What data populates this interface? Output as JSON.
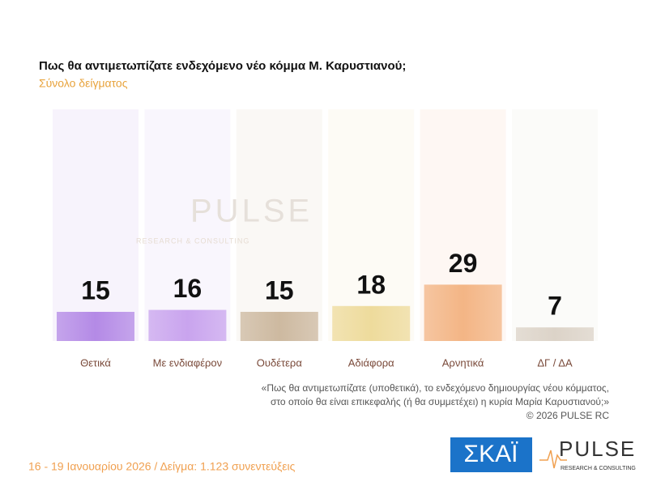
{
  "chart_data": {
    "type": "bar",
    "title": "Πως θα αντιμετωπίζατε ενδεχόμενο νέο κόμμα Μ. Καρυστιανού;",
    "subtitle": "Σύνολο δείγματος",
    "categories": [
      "Θετικά",
      "Με ενδιαφέρον",
      "Ουδέτερα",
      "Αδιάφορα",
      "Αρνητικά",
      "ΔΓ / ΔΑ"
    ],
    "values": [
      15,
      16,
      15,
      18,
      29,
      7
    ],
    "colors": [
      "#b48ae6",
      "#c9a4ee",
      "#cdb9a0",
      "#eedb9c",
      "#f3b585",
      "#dcd3c8"
    ],
    "note": [
      "«Πως θα αντιμετωπίζατε (υποθετικά), το ενδεχόμενο δημιουργίας νέου κόμματος,",
      "στο οποίο θα είναι επικεφαλής (ή θα συμμετέχει) η κυρία Μαρία Καρυστιανού;»",
      "©  2026  PULSE RC"
    ],
    "footer": "16 - 19 Ιανουαρίου 2026  /  Δείγμα:  1.123 συνεντεύξεις",
    "logos": {
      "skai": "ΣΚΑΪ",
      "pulse": "PULSE",
      "pulse_sub": "RESEARCH & CONSULTING"
    }
  }
}
